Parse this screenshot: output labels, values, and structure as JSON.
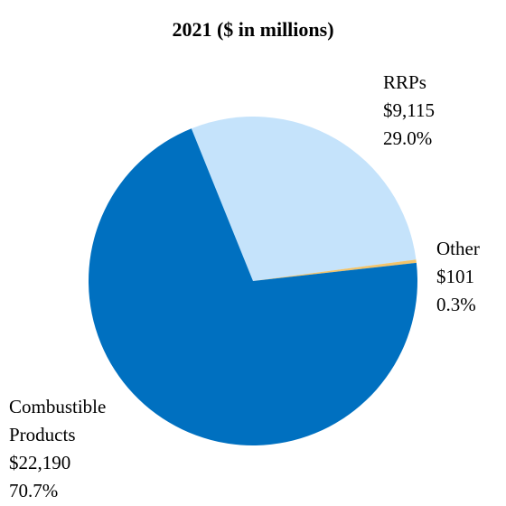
{
  "chart_data": {
    "type": "pie",
    "title": "2021 ($ in millions)",
    "slices": [
      {
        "label": [
          "RRPs"
        ],
        "value_text": "$9,115",
        "pct_text": "29.0%",
        "value": 9115,
        "percent": 29.0,
        "color": "#c5e3fb"
      },
      {
        "label": [
          "Other"
        ],
        "value_text": "$101",
        "pct_text": "0.3%",
        "value": 101,
        "percent": 0.3,
        "color": "#f2c46b"
      },
      {
        "label": [
          "Combustible",
          "Products"
        ],
        "value_text": "$22,190",
        "pct_text": "70.7%",
        "value": 22190,
        "percent": 70.7,
        "color": "#0070c0"
      }
    ]
  }
}
